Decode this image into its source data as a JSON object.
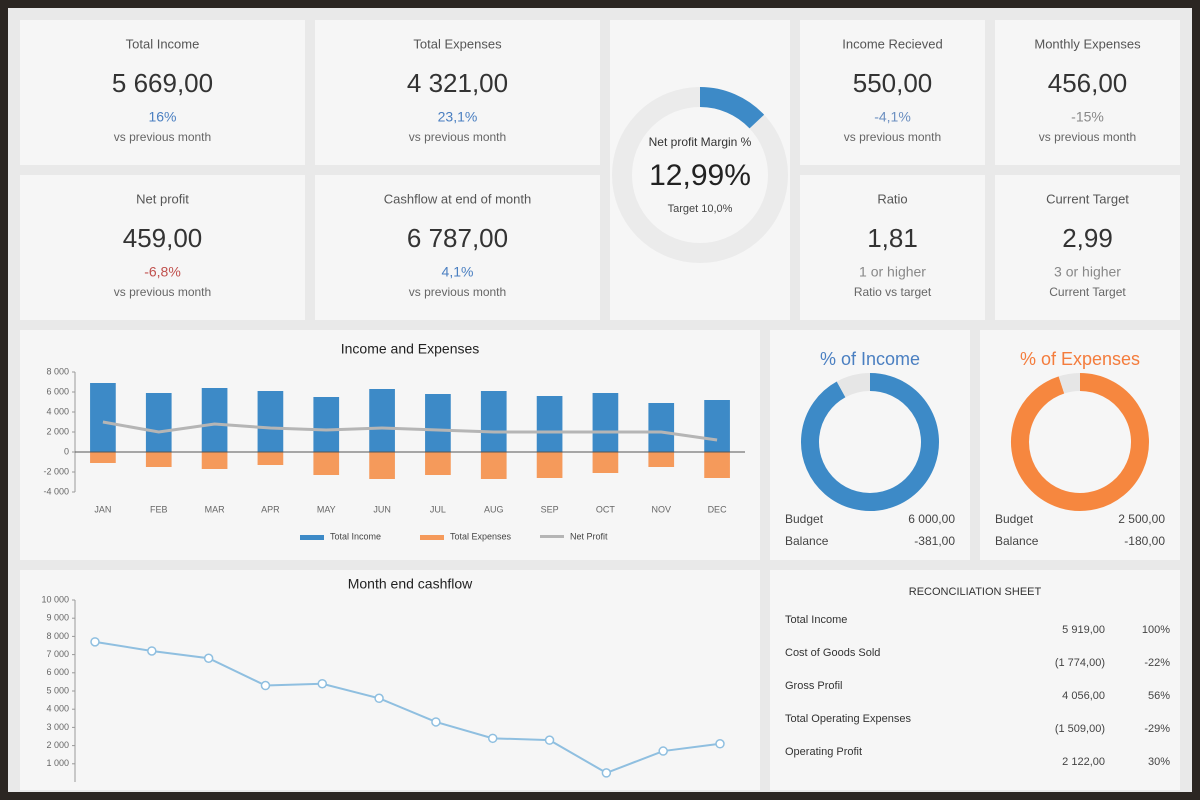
{
  "kpis": [
    {
      "title": "Total Income",
      "value": "5 669,00",
      "change": "16%",
      "note": "vs previous month",
      "change_color": "#4a7fc1"
    },
    {
      "title": "Total Expenses",
      "value": "4 321,00",
      "change": "23,1%",
      "note": "vs previous month",
      "change_color": "#4a7fc1"
    },
    {
      "title": "Net profit",
      "value": "459,00",
      "change": "-6,8%",
      "note": "vs previous month",
      "change_color": "#c0504d"
    },
    {
      "title": "Cashflow at end of month",
      "value": "6 787,00",
      "change": "4,1%",
      "note": "vs previous month",
      "change_color": "#4a7fc1"
    },
    {
      "title": "Income Recieved",
      "value": "550,00",
      "change": "-4,1%",
      "note": "vs previous month",
      "change_color": "#6b8fc0"
    },
    {
      "title": "Monthly Expenses",
      "value": "456,00",
      "change": "-15%",
      "note": "vs previous month",
      "change_color": "#888888"
    },
    {
      "title": "Ratio",
      "value": "1,81",
      "change": "1 or higher",
      "note": "Ratio vs target",
      "change_color": "#888888"
    },
    {
      "title": "Current Target",
      "value": "2,99",
      "change": "3 or higher",
      "note": "Current Target",
      "change_color": "#888888"
    }
  ],
  "chart_data": [
    {
      "type": "gauge",
      "title": "Net profit Margin %",
      "value": 12.99,
      "value_label": "12,99%",
      "subtitle": "Target 10,0%",
      "ylim": [
        0,
        100
      ],
      "color": "#3d8ac7"
    },
    {
      "type": "bar",
      "title": "Income and Expenses",
      "categories": [
        "JAN",
        "FEB",
        "MAR",
        "APR",
        "MAY",
        "JUN",
        "JUL",
        "AUG",
        "SEP",
        "OCT",
        "NOV",
        "DEC"
      ],
      "series": [
        {
          "name": "Total Income",
          "color": "#3d8ac7",
          "values": [
            6900,
            5900,
            6400,
            6100,
            5500,
            6300,
            5800,
            6100,
            5600,
            5900,
            4900,
            5200
          ]
        },
        {
          "name": "Total Expenses",
          "color": "#f59a5b",
          "values": [
            -1100,
            -1500,
            -1700,
            -1300,
            -2300,
            -2700,
            -2300,
            -2700,
            -2600,
            -2100,
            -1500,
            -2600
          ]
        },
        {
          "name": "Net Profit",
          "type": "line",
          "color": "#b5b5b5",
          "values": [
            3000,
            2000,
            2800,
            2400,
            2200,
            2400,
            2200,
            2000,
            2000,
            2000,
            2000,
            1200
          ]
        }
      ],
      "ylim": [
        -4000,
        8000
      ],
      "yticks": [
        {
          "value": -4000,
          "label": "-4 000"
        },
        {
          "value": -2000,
          "label": "-2 000"
        },
        0,
        {
          "value": 2000,
          "label": "2 000"
        },
        {
          "value": 4000,
          "label": "4 000"
        },
        {
          "value": 6000,
          "label": "6 000"
        },
        {
          "value": 8000,
          "label": "8 000"
        }
      ],
      "grid": false
    },
    {
      "type": "donut",
      "title": "% of Income",
      "title_color": "#4a7fc1",
      "values": [
        92,
        8
      ],
      "colors": [
        "#3d8ac7",
        "#e6e6e6"
      ],
      "stats": [
        {
          "label": "Budget",
          "value": "6 000,00"
        },
        {
          "label": "Balance",
          "value": "-381,00"
        }
      ]
    },
    {
      "type": "donut",
      "title": "% of Expenses",
      "title_color": "#f47c3c",
      "values": [
        95,
        5
      ],
      "colors": [
        "#f6873f",
        "#e6e6e6"
      ],
      "stats": [
        {
          "label": "Budget",
          "value": "2 500,00"
        },
        {
          "label": "Balance",
          "value": "-180,00"
        }
      ]
    },
    {
      "type": "line",
      "title": "Month end cashflow",
      "color": "#8fbfe0",
      "values": [
        7700,
        7200,
        6800,
        5300,
        5400,
        4600,
        3300,
        2400,
        2300,
        500,
        1700,
        2100
      ],
      "ylim": [
        0,
        10000
      ],
      "yticks": [
        {
          "value": 1000,
          "label": "1 000"
        },
        {
          "value": 2000,
          "label": "2 000"
        },
        {
          "value": 3000,
          "label": "3 000"
        },
        {
          "value": 4000,
          "label": "4 000"
        },
        {
          "value": 5000,
          "label": "5 000"
        },
        {
          "value": 6000,
          "label": "6 000"
        },
        {
          "value": 7000,
          "label": "7 000"
        },
        {
          "value": 8000,
          "label": "8 000"
        },
        {
          "value": 9000,
          "label": "9 000"
        },
        {
          "value": 10000,
          "label": "10 000"
        }
      ]
    }
  ],
  "reconciliation": {
    "title": "RECONCILIATION SHEET",
    "rows": [
      [
        "Total Income",
        "5 919,00",
        "100%"
      ],
      [
        "Cost of Goods Sold",
        "(1 774,00)",
        "-22%"
      ],
      [
        "Gross Profil",
        "4 056,00",
        "56%"
      ],
      [
        "Total Operating Expenses",
        "(1 509,00)",
        "-29%"
      ],
      [
        "Operating Profit",
        "2 122,00",
        "30%"
      ]
    ]
  }
}
